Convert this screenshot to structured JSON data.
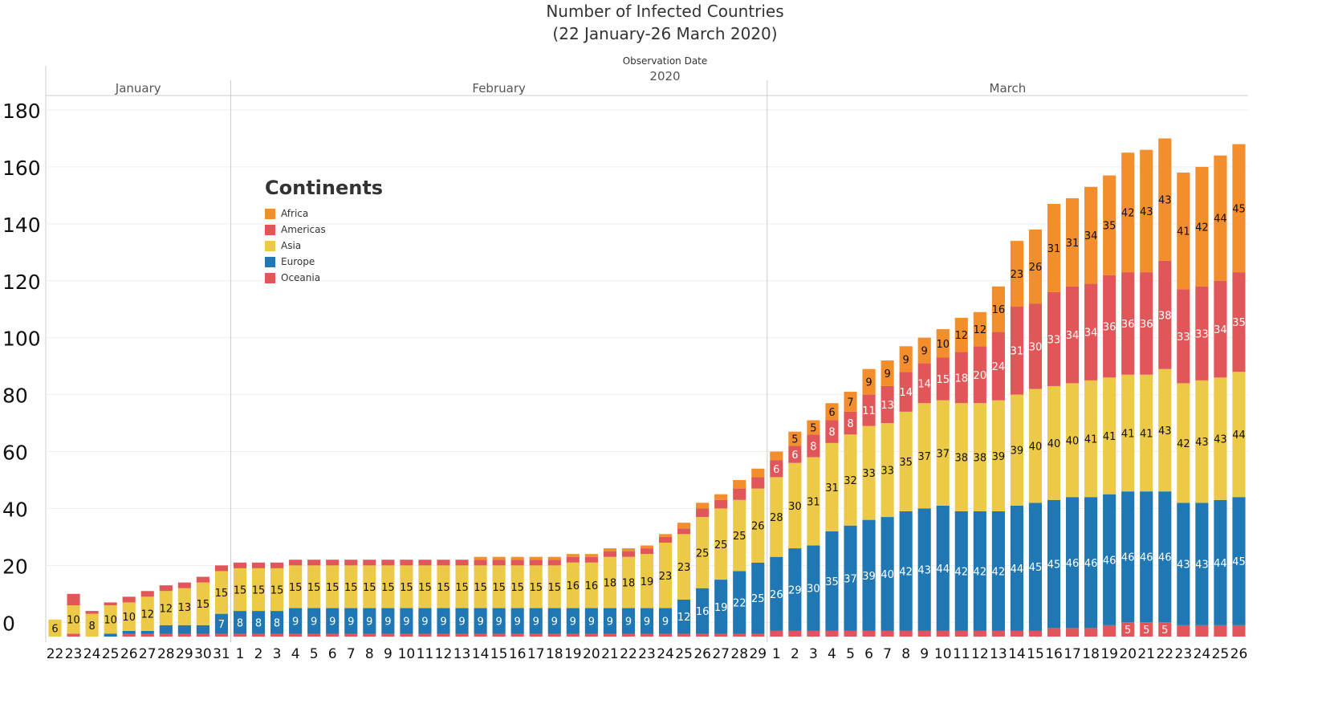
{
  "title_line1": "Number of Infected Countries",
  "title_line2": "(22 January-26 March 2020)",
  "axis_caption": "Observation Date",
  "year": "2020",
  "legend": {
    "title": "Continents",
    "items": [
      {
        "name": "Africa",
        "color": "#F28E2B"
      },
      {
        "name": "Americas",
        "color": "#E15759"
      },
      {
        "name": "Asia",
        "color": "#EDC948"
      },
      {
        "name": "Europe",
        "color": "#1F77B4"
      },
      {
        "name": "Oceania",
        "color": "#E15759"
      }
    ]
  },
  "chart_data": {
    "type": "bar",
    "stacked": true,
    "title": "Number of Infected Countries (22 January-26 March 2020)",
    "xlabel": "Observation Date",
    "ylim": [
      -5,
      180
    ],
    "yticks": [
      0,
      20,
      40,
      60,
      80,
      100,
      120,
      140,
      160,
      180
    ],
    "months": [
      {
        "name": "January",
        "days": 10
      },
      {
        "name": "February",
        "days": 29
      },
      {
        "name": "March",
        "days": 26
      }
    ],
    "categories": [
      "22",
      "23",
      "24",
      "25",
      "26",
      "27",
      "28",
      "29",
      "30",
      "31",
      "1",
      "2",
      "3",
      "4",
      "5",
      "6",
      "7",
      "8",
      "9",
      "10",
      "11",
      "12",
      "13",
      "14",
      "15",
      "16",
      "17",
      "18",
      "19",
      "20",
      "21",
      "22",
      "23",
      "24",
      "25",
      "26",
      "27",
      "28",
      "29",
      "1",
      "2",
      "3",
      "4",
      "5",
      "6",
      "7",
      "8",
      "9",
      "10",
      "11",
      "12",
      "13",
      "14",
      "15",
      "16",
      "17",
      "18",
      "19",
      "20",
      "21",
      "22",
      "23",
      "24",
      "25",
      "26"
    ],
    "series": [
      {
        "name": "Oceania",
        "values": [
          0,
          1,
          0,
          0,
          1,
          1,
          1,
          1,
          1,
          1,
          1,
          1,
          1,
          1,
          1,
          1,
          1,
          1,
          1,
          1,
          1,
          1,
          1,
          1,
          1,
          1,
          1,
          1,
          1,
          1,
          1,
          1,
          1,
          1,
          1,
          1,
          1,
          1,
          1,
          2,
          2,
          2,
          2,
          2,
          2,
          2,
          2,
          2,
          2,
          2,
          2,
          2,
          2,
          2,
          3,
          3,
          3,
          4,
          5,
          5,
          5,
          4,
          4,
          4,
          4
        ]
      },
      {
        "name": "Europe",
        "values": [
          0,
          0,
          0,
          1,
          1,
          1,
          3,
          3,
          3,
          7,
          8,
          8,
          8,
          9,
          9,
          9,
          9,
          9,
          9,
          9,
          9,
          9,
          9,
          9,
          9,
          9,
          9,
          9,
          9,
          9,
          9,
          9,
          9,
          9,
          12,
          16,
          19,
          22,
          25,
          26,
          29,
          30,
          35,
          37,
          39,
          40,
          42,
          43,
          44,
          42,
          42,
          42,
          44,
          45,
          45,
          46,
          46,
          46,
          46,
          46,
          46,
          43,
          43,
          44,
          45
        ]
      },
      {
        "name": "Asia",
        "values": [
          6,
          10,
          8,
          10,
          10,
          12,
          12,
          13,
          15,
          15,
          15,
          15,
          15,
          15,
          15,
          15,
          15,
          15,
          15,
          15,
          15,
          15,
          15,
          15,
          15,
          15,
          15,
          15,
          16,
          16,
          18,
          18,
          19,
          23,
          23,
          25,
          25,
          25,
          26,
          28,
          30,
          31,
          31,
          32,
          33,
          33,
          35,
          37,
          37,
          38,
          38,
          39,
          39,
          40,
          40,
          40,
          41,
          41,
          41,
          41,
          43,
          42,
          43,
          43,
          44
        ]
      },
      {
        "name": "Americas",
        "values": [
          0,
          4,
          1,
          1,
          2,
          2,
          2,
          2,
          2,
          2,
          2,
          2,
          2,
          2,
          2,
          2,
          2,
          2,
          2,
          2,
          2,
          2,
          2,
          2,
          2,
          2,
          2,
          2,
          2,
          2,
          2,
          2,
          2,
          2,
          2,
          3,
          3,
          4,
          4,
          6,
          6,
          8,
          8,
          8,
          11,
          13,
          14,
          14,
          15,
          18,
          20,
          24,
          31,
          30,
          33,
          34,
          34,
          36,
          36,
          36,
          38,
          33,
          33,
          34,
          35
        ]
      },
      {
        "name": "Africa",
        "values": [
          0,
          0,
          0,
          0,
          0,
          0,
          0,
          0,
          0,
          0,
          0,
          0,
          0,
          0,
          0,
          0,
          0,
          0,
          0,
          0,
          0,
          0,
          0,
          1,
          1,
          1,
          1,
          1,
          1,
          1,
          1,
          1,
          1,
          1,
          2,
          2,
          2,
          3,
          3,
          3,
          5,
          5,
          6,
          7,
          9,
          9,
          9,
          9,
          10,
          12,
          12,
          16,
          23,
          26,
          31,
          31,
          34,
          35,
          42,
          43,
          43,
          41,
          42,
          44,
          45
        ]
      }
    ],
    "label_min": 5
  }
}
